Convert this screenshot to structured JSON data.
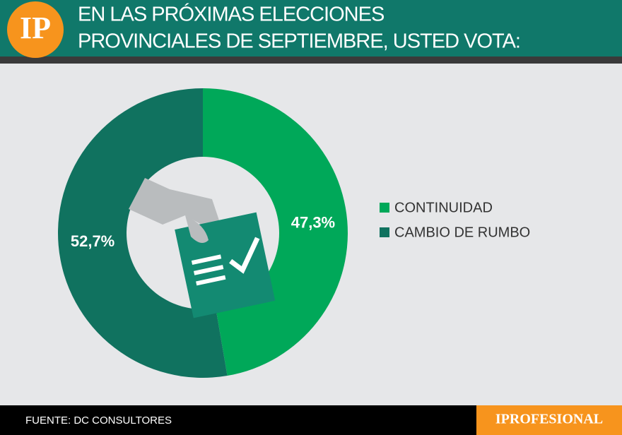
{
  "logo": "IP",
  "source": "FUENTE: DC CONSULTORES",
  "brand": "IPROFESIONAL",
  "chart_data": {
    "type": "pie",
    "title": [
      "EN LAS PRÓXIMAS ELECCIONES",
      "PROVINCIALES DE SEPTIEMBRE, USTED VOTA:"
    ],
    "categories": [
      "CONTINUIDAD",
      "CAMBIO DE RUMBO"
    ],
    "values": [
      47.3,
      52.7
    ],
    "value_labels": [
      "47,3%",
      "52,7%"
    ],
    "colors": [
      "#00a859",
      "#10725f"
    ],
    "legend": "right"
  }
}
